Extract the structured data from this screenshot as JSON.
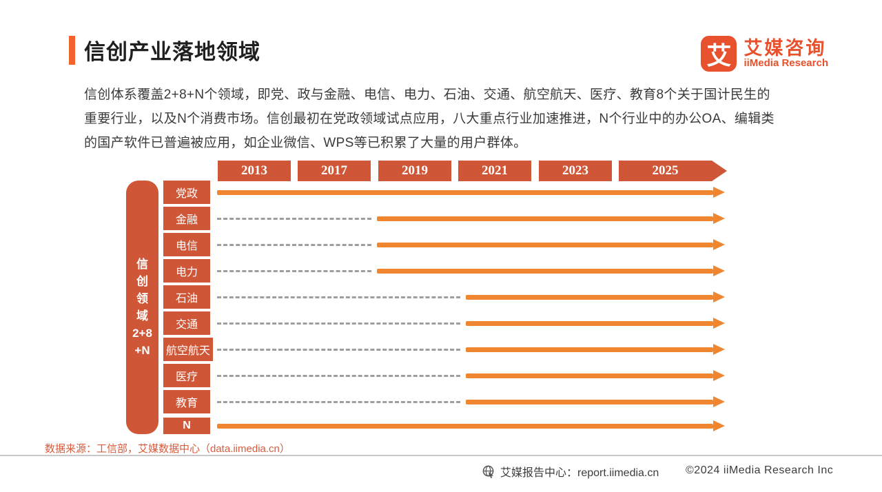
{
  "header": {
    "title": "信创产业落地领域",
    "logo": {
      "mark": "艾",
      "name_cn": "艾媒咨询",
      "name_en": "iiMedia Research"
    }
  },
  "intro": {
    "lines": [
      "信创体系覆盖2+8+N个领域，即党、政与金融、电信、电力、石油、交通、航空航天、医疗、教育8个关于国计民生的",
      "重要行业，以及N个消费市场。信创最初在党政领域试点应用，八大重点行业加速推进，N个行业中的办公OA、编辑类",
      "的国产软件已普遍被应用，如企业微信、WPS等已积累了大量的用户群体。"
    ]
  },
  "chart_data": {
    "type": "bar",
    "subtype": "gantt-timeline",
    "title": "信创产业落地领域",
    "x_ticks": [
      "2013",
      "2017",
      "2019",
      "2021",
      "2023",
      "2025"
    ],
    "axis_label": "信创领域2+8+N",
    "axis_label_lines": [
      "信",
      "创",
      "领",
      "域",
      "2+8",
      "+N"
    ],
    "rows": [
      {
        "label": "党政",
        "solid_from": "2013"
      },
      {
        "label": "金融",
        "solid_from": "2019"
      },
      {
        "label": "电信",
        "solid_from": "2019"
      },
      {
        "label": "电力",
        "solid_from": "2019"
      },
      {
        "label": "石油",
        "solid_from": "2021"
      },
      {
        "label": "交通",
        "solid_from": "2021"
      },
      {
        "label": "航空航天",
        "solid_from": "2021"
      },
      {
        "label": "医疗",
        "solid_from": "2021"
      },
      {
        "label": "教育",
        "solid_from": "2021"
      },
      {
        "label": "N",
        "solid_from": "2013"
      }
    ],
    "colors": {
      "milestone": "#cf5737",
      "arrow": "#f0862f",
      "dashed": "#9e9e9e",
      "accent": "#f4632e",
      "logo": "#e8512d"
    },
    "legend_position": "none",
    "grid": false
  },
  "source": {
    "text": "数据来源：工信部，艾媒数据中心（data.iimedia.cn）"
  },
  "footer": {
    "report_center": "艾媒报告中心：report.iimedia.cn",
    "copyright": "©2024  iiMedia Research Inc"
  }
}
